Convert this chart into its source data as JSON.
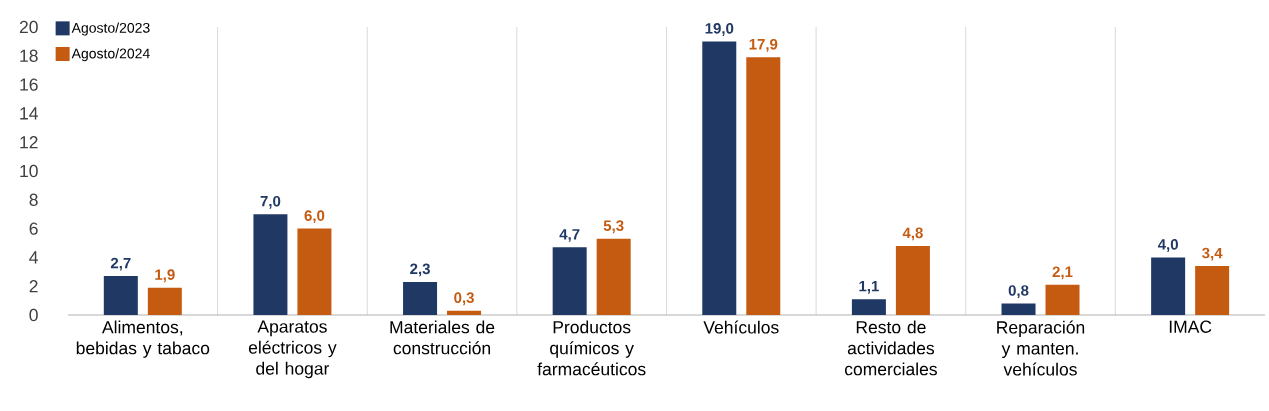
{
  "chart_data": {
    "type": "bar",
    "categories": [
      "Alimentos, bebidas y tabaco",
      "Aparatos eléctricos y del hogar",
      "Materiales de construcción",
      "Productos químicos y farmacéuticos",
      "Vehículos",
      "Resto de actividades comerciales",
      "Reparación y manten. vehículos",
      "IMAC"
    ],
    "series": [
      {
        "name": "Agosto/2023",
        "color": "#203864",
        "values": [
          2.7,
          7.0,
          2.3,
          4.7,
          19.0,
          1.1,
          0.8,
          4.0
        ],
        "value_labels": [
          "2,7",
          "7,0",
          "2,3",
          "4,7",
          "19,0",
          "1,1",
          "0,8",
          "4,0"
        ]
      },
      {
        "name": "Agosto/2024",
        "color": "#c55a11",
        "values": [
          1.9,
          6.0,
          0.3,
          5.3,
          17.9,
          4.8,
          2.1,
          3.4
        ],
        "value_labels": [
          "1,9",
          "6,0",
          "0,3",
          "5,3",
          "17,9",
          "4,8",
          "2,1",
          "3,4"
        ]
      }
    ],
    "ylim": [
      0,
      20
    ],
    "yticks": [
      0,
      2,
      4,
      6,
      8,
      10,
      12,
      14,
      16,
      18,
      20
    ],
    "grid": "x",
    "legend": "top left"
  }
}
